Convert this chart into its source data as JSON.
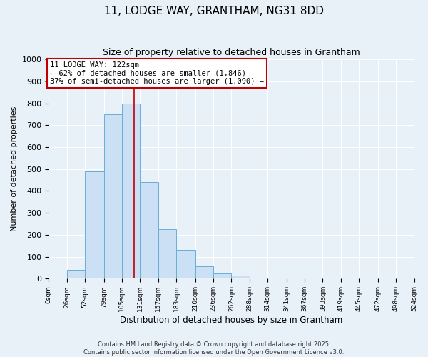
{
  "title": "11, LODGE WAY, GRANTHAM, NG31 8DD",
  "subtitle": "Size of property relative to detached houses in Grantham",
  "xlabel": "Distribution of detached houses by size in Grantham",
  "ylabel": "Number of detached properties",
  "bin_edges": [
    0,
    26,
    52,
    79,
    105,
    131,
    157,
    183,
    210,
    236,
    262,
    288,
    314,
    341,
    367,
    393,
    419,
    445,
    472,
    498,
    524
  ],
  "bin_counts": [
    0,
    40,
    490,
    750,
    800,
    440,
    225,
    130,
    55,
    25,
    15,
    5,
    0,
    0,
    0,
    0,
    0,
    0,
    3,
    0
  ],
  "bar_color": "#cce0f5",
  "bar_edge_color": "#6aaed6",
  "property_size": 122,
  "property_line_color": "#c00000",
  "annotation_box_color": "#c00000",
  "annotation_text": "11 LODGE WAY: 122sqm\n← 62% of detached houses are smaller (1,846)\n37% of semi-detached houses are larger (1,090) →",
  "annotation_fontsize": 7.5,
  "ylim": [
    0,
    1000
  ],
  "yticks": [
    0,
    100,
    200,
    300,
    400,
    500,
    600,
    700,
    800,
    900,
    1000
  ],
  "tick_labels": [
    "0sqm",
    "26sqm",
    "52sqm",
    "79sqm",
    "105sqm",
    "131sqm",
    "157sqm",
    "183sqm",
    "210sqm",
    "236sqm",
    "262sqm",
    "288sqm",
    "314sqm",
    "341sqm",
    "367sqm",
    "393sqm",
    "419sqm",
    "445sqm",
    "472sqm",
    "498sqm",
    "524sqm"
  ],
  "background_color": "#e8f0f8",
  "plot_background_color": "#e8f0f8",
  "grid_color": "#ffffff",
  "footer_text": "Contains HM Land Registry data © Crown copyright and database right 2025.\nContains public sector information licensed under the Open Government Licence v3.0.",
  "title_fontsize": 11,
  "subtitle_fontsize": 9,
  "xlabel_fontsize": 8.5,
  "ylabel_fontsize": 8
}
